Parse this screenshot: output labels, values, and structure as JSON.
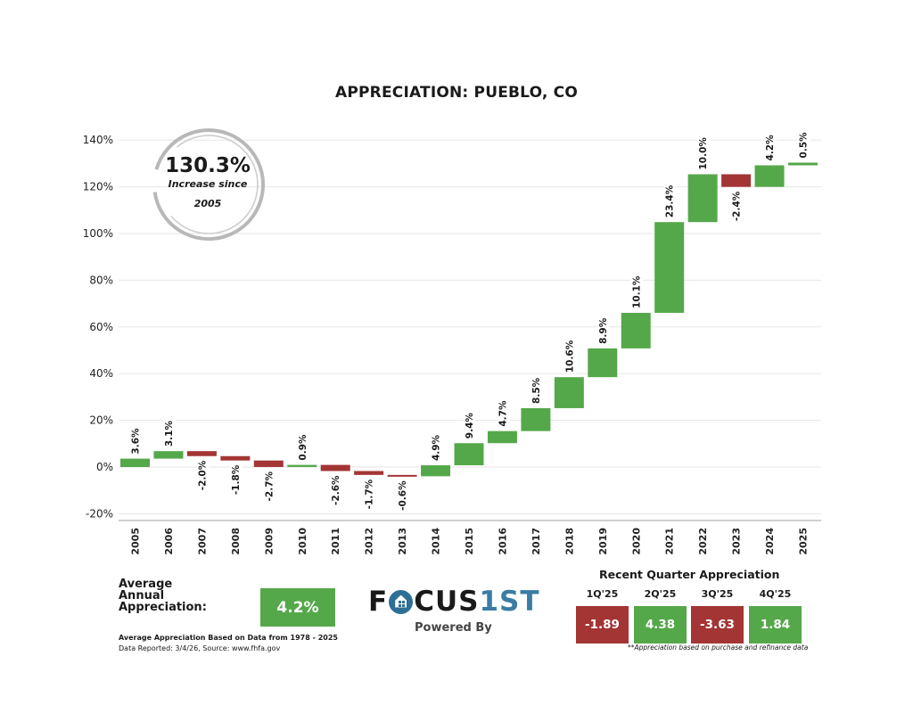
{
  "colors": {
    "increase": "#55a84a",
    "decrease": "#a33535",
    "grid": "#e6e6e6",
    "axis": "#cfcfcf",
    "badge_ring": "#b8b8b8",
    "logo_blue": "#3a7ca5"
  },
  "badge": {
    "value": "130.3%",
    "line1": "Increase since",
    "line2": "2005"
  },
  "chart_data": {
    "type": "waterfall",
    "title": "APPRECIATION:  PUEBLO, CO",
    "xlabel": "",
    "ylabel": "",
    "ylim": [
      -20,
      140
    ],
    "yticks": [
      -20,
      0,
      20,
      40,
      60,
      80,
      100,
      120,
      140
    ],
    "ytick_labels": [
      "-20%",
      "0%",
      "20%",
      "40%",
      "60%",
      "80%",
      "100%",
      "120%",
      "140%"
    ],
    "grid": true,
    "cumulative_method": "compounded",
    "categories": [
      "2005",
      "2006",
      "2007",
      "2008",
      "2009",
      "2010",
      "2011",
      "2012",
      "2013",
      "2014",
      "2015",
      "2016",
      "2017",
      "2018",
      "2019",
      "2020",
      "2021",
      "2022",
      "2023",
      "2024",
      "2025"
    ],
    "values": [
      3.6,
      3.1,
      -2.0,
      -1.8,
      -2.7,
      0.9,
      -2.6,
      -1.7,
      -0.6,
      4.9,
      9.4,
      4.7,
      8.5,
      10.6,
      8.9,
      10.1,
      23.4,
      10.0,
      -2.4,
      4.2,
      0.5
    ],
    "labels": [
      "3.6%",
      "3.1%",
      "-2.0%",
      "-1.8%",
      "-2.7%",
      "0.9%",
      "-2.6%",
      "-1.7%",
      "-0.6%",
      "4.9%",
      "9.4%",
      "4.7%",
      "8.5%",
      "10.6%",
      "8.9%",
      "10.1%",
      "23.4%",
      "10.0%",
      "-2.4%",
      "4.2%",
      "0.5%"
    ],
    "total_increase": 130.3
  },
  "summary": {
    "avg_label_lines": [
      "Average",
      "Annual",
      "Appreciation:"
    ],
    "avg_value": "4.2%",
    "avg_note": "Average Appreciation Based on Data from 1978 - 2025",
    "data_reported": "Data Reported: 3/4/26, Source: www.fhfa.gov"
  },
  "logo": {
    "part1": "F",
    "part2": "CUS",
    "part3": "1ST",
    "powered_by": "Powered By"
  },
  "recent_quarters": {
    "title": "Recent Quarter Appreciation",
    "items": [
      {
        "label": "1Q'25",
        "value": "-1.89",
        "direction": "down"
      },
      {
        "label": "2Q'25",
        "value": "4.38",
        "direction": "up"
      },
      {
        "label": "3Q'25",
        "value": "-3.63",
        "direction": "down"
      },
      {
        "label": "4Q'25",
        "value": "1.84",
        "direction": "up"
      }
    ],
    "note": "**Appreciation based on purchase and refinance data"
  }
}
